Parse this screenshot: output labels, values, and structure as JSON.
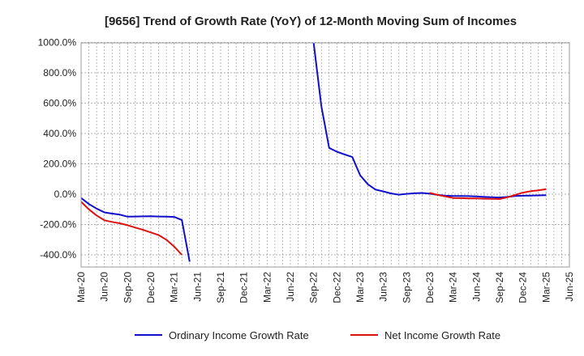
{
  "chart_data": {
    "type": "line",
    "title": "[9656]  Trend of Growth Rate (YoY) of 12-Month Moving Sum of Incomes",
    "xlabel": "",
    "ylabel": "",
    "ylim": [
      -480,
      1000
    ],
    "yticks": [
      1000,
      800,
      600,
      400,
      200,
      0,
      -200,
      -400
    ],
    "ytick_labels": [
      "1000.0%",
      "800.0%",
      "600.0%",
      "400.0%",
      "200.0%",
      "0.0%",
      "-200.0%",
      "-400.0%"
    ],
    "xrange_months": [
      "2020-03",
      "2025-06"
    ],
    "xtick_labels": [
      "Mar-20",
      "Jun-20",
      "Sep-20",
      "Dec-20",
      "Mar-21",
      "Jun-21",
      "Sep-21",
      "Dec-21",
      "Mar-22",
      "Jun-22",
      "Sep-22",
      "Dec-22",
      "Mar-23",
      "Jun-23",
      "Sep-23",
      "Dec-23",
      "Mar-24",
      "Jun-24",
      "Sep-24",
      "Dec-24",
      "Mar-25",
      "Jun-25"
    ],
    "grid": true,
    "legend_position": "bottom",
    "colors": {
      "ordinary": "#1010cc",
      "net": "#dd1111",
      "grid": "#999999"
    },
    "series": [
      {
        "name": "Ordinary Income Growth Rate",
        "color": "#1010cc",
        "points": [
          [
            "2020-03",
            -25
          ],
          [
            "2020-04",
            -65
          ],
          [
            "2020-05",
            -95
          ],
          [
            "2020-06",
            -120
          ],
          [
            "2020-07",
            -128
          ],
          [
            "2020-08",
            -135
          ],
          [
            "2020-09",
            -148
          ],
          [
            "2020-10",
            -147
          ],
          [
            "2020-11",
            -146
          ],
          [
            "2020-12",
            -145
          ],
          [
            "2021-01",
            -147
          ],
          [
            "2021-02",
            -148
          ],
          [
            "2021-03",
            -150
          ],
          [
            "2021-04",
            -170
          ],
          [
            "2021-05",
            -445
          ],
          null,
          [
            "2022-09",
            1000
          ],
          [
            "2022-10",
            580
          ],
          [
            "2022-11",
            305
          ],
          [
            "2022-12",
            280
          ],
          [
            "2023-01",
            262
          ],
          [
            "2023-02",
            245
          ],
          [
            "2023-03",
            125
          ],
          [
            "2023-04",
            65
          ],
          [
            "2023-05",
            30
          ],
          [
            "2023-06",
            18
          ],
          [
            "2023-07",
            5
          ],
          [
            "2023-08",
            -3
          ],
          [
            "2023-09",
            2
          ],
          [
            "2023-10",
            6
          ],
          [
            "2023-11",
            8
          ],
          [
            "2023-12",
            3
          ],
          [
            "2024-01",
            -5
          ],
          [
            "2024-02",
            -10
          ],
          [
            "2024-03",
            -12
          ],
          [
            "2024-04",
            -12
          ],
          [
            "2024-05",
            -13
          ],
          [
            "2024-06",
            -15
          ],
          [
            "2024-07",
            -18
          ],
          [
            "2024-08",
            -20
          ],
          [
            "2024-09",
            -22
          ],
          [
            "2024-10",
            -18
          ],
          [
            "2024-11",
            -12
          ],
          [
            "2024-12",
            -10
          ],
          [
            "2025-01",
            -9
          ],
          [
            "2025-02",
            -8
          ],
          [
            "2025-03",
            -7
          ]
        ]
      },
      {
        "name": "Net Income Growth Rate",
        "color": "#dd1111",
        "points": [
          [
            "2020-03",
            -50
          ],
          [
            "2020-04",
            -100
          ],
          [
            "2020-05",
            -140
          ],
          [
            "2020-06",
            -172
          ],
          [
            "2020-07",
            -183
          ],
          [
            "2020-08",
            -192
          ],
          [
            "2020-09",
            -205
          ],
          [
            "2020-10",
            -220
          ],
          [
            "2020-11",
            -235
          ],
          [
            "2020-12",
            -252
          ],
          [
            "2021-01",
            -270
          ],
          [
            "2021-02",
            -300
          ],
          [
            "2021-03",
            -345
          ],
          [
            "2021-04",
            -400
          ],
          null,
          [
            "2023-12",
            8
          ],
          [
            "2024-01",
            -5
          ],
          [
            "2024-02",
            -15
          ],
          [
            "2024-03",
            -25
          ],
          [
            "2024-04",
            -26
          ],
          [
            "2024-05",
            -28
          ],
          [
            "2024-06",
            -28
          ],
          [
            "2024-07",
            -30
          ],
          [
            "2024-08",
            -31
          ],
          [
            "2024-09",
            -32
          ],
          [
            "2024-10",
            -20
          ],
          [
            "2024-11",
            -5
          ],
          [
            "2024-12",
            10
          ],
          [
            "2025-01",
            20
          ],
          [
            "2025-02",
            25
          ],
          [
            "2025-03",
            33
          ]
        ]
      }
    ]
  }
}
